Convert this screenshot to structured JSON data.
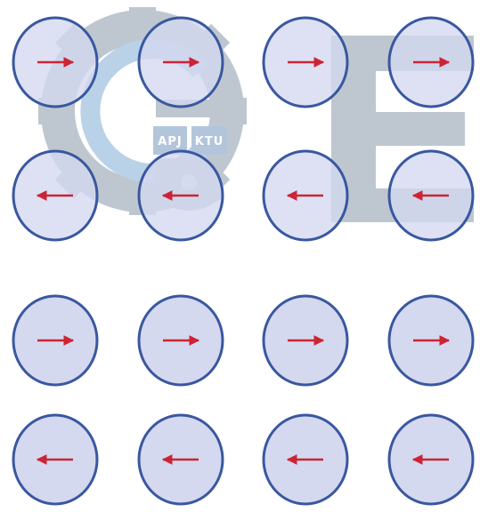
{
  "watermark": {
    "logo_text": [
      "APJ",
      "KTU"
    ],
    "letter": "E",
    "color": "#b3bec8"
  },
  "diagram": {
    "rows": [
      {
        "row": 1,
        "group": "upper",
        "direction": "right"
      },
      {
        "row": 2,
        "group": "upper",
        "direction": "left"
      },
      {
        "row": 3,
        "group": "lower",
        "direction": "right"
      },
      {
        "row": 4,
        "group": "lower",
        "direction": "left"
      }
    ],
    "columns": 4,
    "circle_fill": "#d4d9ef",
    "circle_stroke": "#3a57a0",
    "arrow_color": "#cc2435"
  }
}
